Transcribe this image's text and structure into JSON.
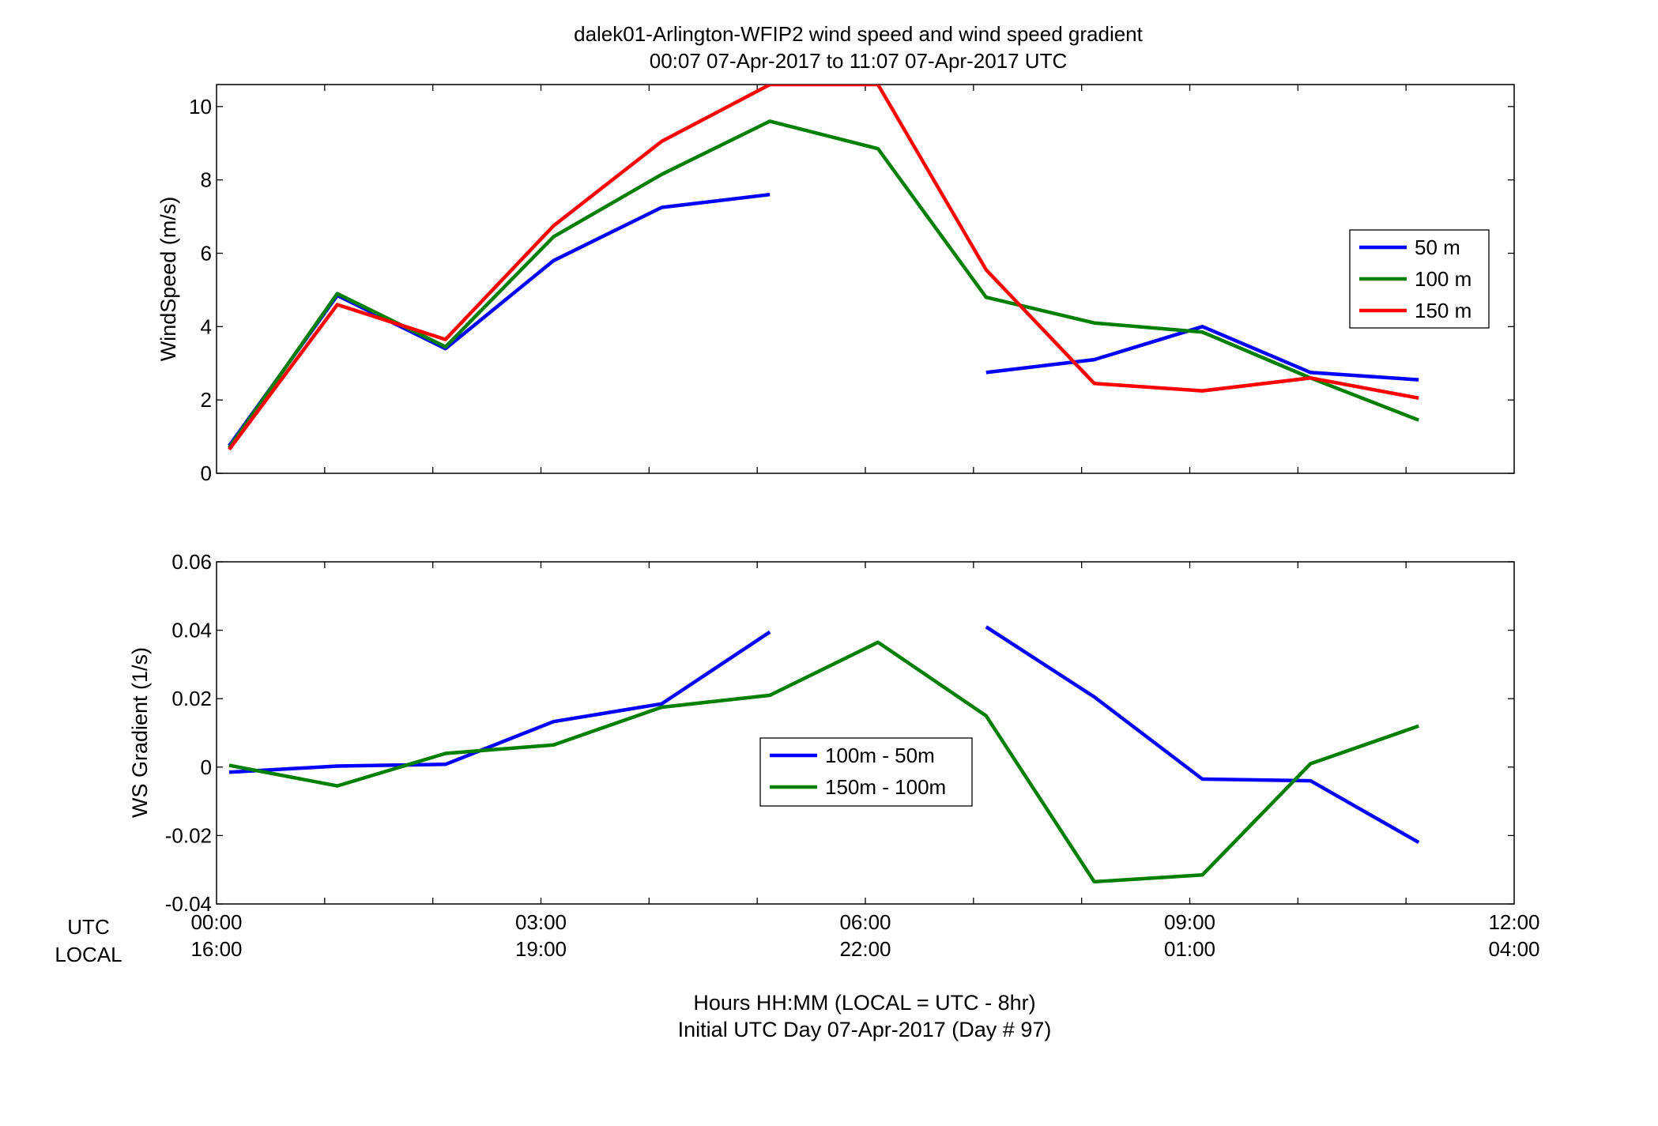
{
  "title_line1": "dalek01-Arlington-WFIP2  wind speed and wind speed gradient",
  "title_line2": "00:07 07-Apr-2017 to 11:07 07-Apr-2017  UTC",
  "row_labels": {
    "utc": "UTC",
    "local": "LOCAL"
  },
  "xtick_utc": [
    "00:00",
    "03:00",
    "06:00",
    "09:00",
    "12:00"
  ],
  "xtick_local": [
    "16:00",
    "19:00",
    "22:00",
    "01:00",
    "04:00"
  ],
  "xlabel_line1": "Hours HH:MM  (LOCAL = UTC - 8hr)",
  "xlabel_line2": "Initial UTC Day 07-Apr-2017 (Day # 97)",
  "colors": {
    "blue": "#0000ff",
    "green": "#007f00",
    "red": "#ff0000"
  },
  "chart_data": [
    {
      "type": "line",
      "ylabel": "WindSpeed (m/s)",
      "xlim": [
        0,
        12
      ],
      "ylim": [
        0,
        10.6
      ],
      "yticks": [
        0,
        2,
        4,
        6,
        8,
        10
      ],
      "ytick_labels": [
        "0",
        "2",
        "4",
        "6",
        "8",
        "10"
      ],
      "legend_position": "right",
      "x": [
        0.117,
        1.117,
        2.117,
        3.117,
        4.117,
        5.117,
        6.117,
        7.117,
        8.117,
        9.117,
        10.117,
        11.117
      ],
      "series": [
        {
          "name": "50 m",
          "color": "#0000ff",
          "values": [
            0.75,
            4.85,
            3.4,
            5.8,
            7.25,
            7.6,
            null,
            2.75,
            3.1,
            4.0,
            2.75,
            2.55
          ]
        },
        {
          "name": "100 m",
          "color": "#007f00",
          "values": [
            0.7,
            4.9,
            3.45,
            6.45,
            8.15,
            9.6,
            8.85,
            4.8,
            4.1,
            3.85,
            2.6,
            1.45
          ]
        },
        {
          "name": "150 m",
          "color": "#ff0000",
          "values": [
            0.65,
            4.6,
            3.65,
            6.75,
            9.05,
            10.6,
            10.6,
            5.55,
            2.45,
            2.25,
            2.6,
            2.05
          ]
        }
      ]
    },
    {
      "type": "line",
      "ylabel": "WS Gradient (1/s)",
      "xlim": [
        0,
        12
      ],
      "ylim": [
        -0.04,
        0.06
      ],
      "yticks": [
        -0.04,
        -0.02,
        0,
        0.02,
        0.04,
        0.06
      ],
      "ytick_labels": [
        "-0.04",
        "-0.02",
        "0",
        "0.02",
        "0.04",
        "0.06"
      ],
      "legend_position": "center",
      "x": [
        0.117,
        1.117,
        2.117,
        3.117,
        4.117,
        5.117,
        6.117,
        7.117,
        8.117,
        9.117,
        10.117,
        11.117
      ],
      "series": [
        {
          "name": "100m - 50m",
          "color": "#0000ff",
          "values": [
            -0.0015,
            0.0003,
            0.0008,
            0.0133,
            0.0185,
            0.0395,
            null,
            0.041,
            0.0205,
            -0.0035,
            -0.004,
            -0.022
          ]
        },
        {
          "name": "150m - 100m",
          "color": "#007f00",
          "values": [
            0.0005,
            -0.0055,
            0.004,
            0.0065,
            0.0175,
            0.021,
            0.0365,
            0.015,
            -0.0335,
            -0.0315,
            0.001,
            0.012
          ]
        }
      ]
    }
  ]
}
